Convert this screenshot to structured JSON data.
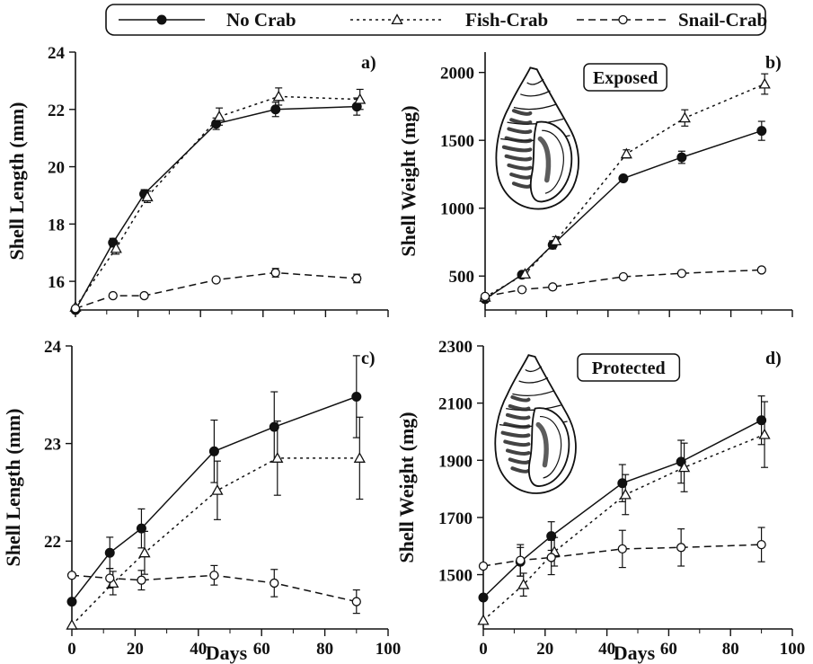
{
  "legend": {
    "items": [
      {
        "label": "No Crab",
        "style": "solid",
        "marker": "filled-circle"
      },
      {
        "label": "Fish-Crab",
        "style": "dotted",
        "marker": "open-triangle"
      },
      {
        "label": "Snail-Crab",
        "style": "dashed",
        "marker": "open-circle"
      }
    ]
  },
  "chart_data": [
    {
      "type": "line",
      "panel_label": "a)",
      "tag": "",
      "xlabel": "",
      "ylabel": "Shell Length (mm)",
      "xlim": [
        0,
        100
      ],
      "ylim": [
        15,
        24
      ],
      "xticks": [
        0,
        20,
        40,
        60,
        80,
        100
      ],
      "xtick_labels": false,
      "yticks": [
        16,
        18,
        20,
        22,
        24
      ],
      "series": [
        {
          "name": "No Crab",
          "points": [
            [
              0,
              15.0
            ],
            [
              12,
              17.35
            ],
            [
              22,
              19.05
            ],
            [
              45,
              21.5
            ],
            [
              64,
              22.0
            ],
            [
              90,
              22.1
            ]
          ],
          "err": [
            0,
            0.15,
            0.15,
            0.2,
            0.25,
            0.3
          ]
        },
        {
          "name": "Fish-Crab",
          "points": [
            [
              0,
              15.1
            ],
            [
              13,
              17.15
            ],
            [
              23,
              18.95
            ],
            [
              46,
              21.75
            ],
            [
              65,
              22.45
            ],
            [
              91,
              22.35
            ]
          ],
          "err": [
            0,
            0.2,
            0.2,
            0.3,
            0.3,
            0.35
          ]
        },
        {
          "name": "Snail-Crab",
          "points": [
            [
              0,
              15.05
            ],
            [
              12,
              15.5
            ],
            [
              22,
              15.5
            ],
            [
              45,
              16.05
            ],
            [
              64,
              16.3
            ],
            [
              90,
              16.1
            ]
          ],
          "err": [
            0,
            0.05,
            0.05,
            0.05,
            0.15,
            0.15
          ]
        }
      ]
    },
    {
      "type": "line",
      "panel_label": "b)",
      "tag": "Exposed",
      "xlabel": "",
      "ylabel": "Shell Weight (mg)",
      "xlim": [
        0,
        100
      ],
      "ylim": [
        250,
        2150
      ],
      "xticks": [
        0,
        20,
        40,
        60,
        80,
        100
      ],
      "xtick_labels": false,
      "yticks": [
        500,
        1000,
        1500,
        2000
      ],
      "series": [
        {
          "name": "No Crab",
          "points": [
            [
              0,
              330
            ],
            [
              12,
              510
            ],
            [
              22,
              730
            ],
            [
              45,
              1220
            ],
            [
              64,
              1375
            ],
            [
              90,
              1570
            ]
          ],
          "err": [
            0,
            15,
            30,
            20,
            45,
            70
          ]
        },
        {
          "name": "Fish-Crab",
          "points": [
            [
              0,
              345
            ],
            [
              13,
              515
            ],
            [
              23,
              760
            ],
            [
              46,
              1400
            ],
            [
              65,
              1665
            ],
            [
              91,
              1915
            ]
          ],
          "err": [
            0,
            15,
            30,
            30,
            60,
            75
          ]
        },
        {
          "name": "Snail-Crab",
          "points": [
            [
              0,
              350
            ],
            [
              12,
              400
            ],
            [
              22,
              420
            ],
            [
              45,
              495
            ],
            [
              64,
              520
            ],
            [
              90,
              545
            ]
          ],
          "err": [
            0,
            10,
            10,
            10,
            10,
            15
          ]
        }
      ]
    },
    {
      "type": "line",
      "panel_label": "c)",
      "tag": "",
      "xlabel": "Days",
      "ylabel": "Shell Length (mm)",
      "xlim": [
        0,
        100
      ],
      "ylim": [
        21.1,
        24.0
      ],
      "xticks": [
        0,
        20,
        40,
        60,
        80,
        100
      ],
      "xtick_labels": true,
      "yticks": [
        22,
        23,
        24
      ],
      "series": [
        {
          "name": "No Crab",
          "points": [
            [
              0,
              21.38
            ],
            [
              12,
              21.88
            ],
            [
              22,
              22.13
            ],
            [
              45,
              22.92
            ],
            [
              64,
              23.17
            ],
            [
              90,
              23.48
            ]
          ],
          "err": [
            0,
            0.16,
            0.2,
            0.32,
            0.36,
            0.42
          ]
        },
        {
          "name": "Fish-Crab",
          "points": [
            [
              0,
              21.14
            ],
            [
              13,
              21.57
            ],
            [
              23,
              21.88
            ],
            [
              46,
              22.52
            ],
            [
              65,
              22.85
            ],
            [
              91,
              22.85
            ]
          ],
          "err": [
            0,
            0.12,
            0.22,
            0.3,
            0.38,
            0.42
          ]
        },
        {
          "name": "Snail-Crab",
          "points": [
            [
              0,
              21.65
            ],
            [
              12,
              21.62
            ],
            [
              22,
              21.6
            ],
            [
              45,
              21.65
            ],
            [
              64,
              21.57
            ],
            [
              90,
              21.38
            ]
          ],
          "err": [
            0,
            0.1,
            0.1,
            0.1,
            0.14,
            0.12
          ]
        }
      ]
    },
    {
      "type": "line",
      "panel_label": "d)",
      "tag": "Protected",
      "xlabel": "Days",
      "ylabel": "Shell Weight (mg)",
      "xlim": [
        0,
        100
      ],
      "ylim": [
        1310,
        2300
      ],
      "xticks": [
        0,
        20,
        40,
        60,
        80,
        100
      ],
      "xtick_labels": true,
      "yticks": [
        1500,
        1700,
        1900,
        2100,
        2300
      ],
      "series": [
        {
          "name": "No Crab",
          "points": [
            [
              0,
              1420
            ],
            [
              12,
              1545
            ],
            [
              22,
              1635
            ],
            [
              45,
              1820
            ],
            [
              64,
              1895
            ],
            [
              90,
              2040
            ]
          ],
          "err": [
            0,
            50,
            50,
            65,
            75,
            85
          ]
        },
        {
          "name": "Fish-Crab",
          "points": [
            [
              0,
              1340
            ],
            [
              13,
              1465
            ],
            [
              23,
              1580
            ],
            [
              46,
              1780
            ],
            [
              65,
              1875
            ],
            [
              91,
              1990
            ]
          ],
          "err": [
            0,
            40,
            50,
            70,
            85,
            115
          ]
        },
        {
          "name": "Snail-Crab",
          "points": [
            [
              0,
              1530
            ],
            [
              12,
              1550
            ],
            [
              22,
              1560
            ],
            [
              45,
              1590
            ],
            [
              64,
              1595
            ],
            [
              90,
              1605
            ]
          ],
          "err": [
            0,
            55,
            60,
            65,
            65,
            60
          ]
        }
      ]
    }
  ]
}
